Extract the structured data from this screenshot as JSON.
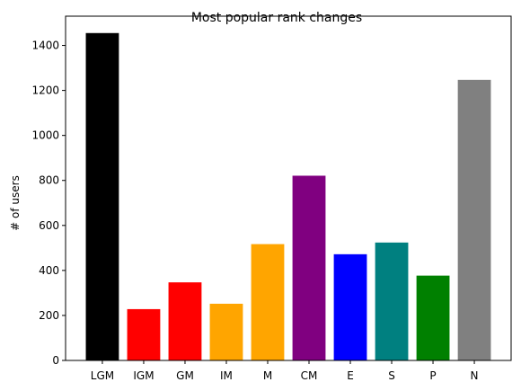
{
  "chart_data": {
    "type": "bar",
    "title": "Most popular rank changes",
    "xlabel": "",
    "ylabel": "# of users",
    "categories": [
      "LGM",
      "IGM",
      "GM",
      "IM",
      "M",
      "CM",
      "E",
      "S",
      "P",
      "N"
    ],
    "values": [
      1455,
      228,
      347,
      252,
      517,
      821,
      472,
      524,
      377,
      1247
    ],
    "colors": [
      "#000000",
      "#ff0000",
      "#ff0000",
      "#ffa500",
      "#ffa500",
      "#800080",
      "#0000ff",
      "#008080",
      "#008000",
      "#808080"
    ],
    "ylim": [
      0,
      1530
    ],
    "yticks": [
      0,
      200,
      400,
      600,
      800,
      1000,
      1200,
      1400
    ],
    "grid": false,
    "legend": "none"
  }
}
